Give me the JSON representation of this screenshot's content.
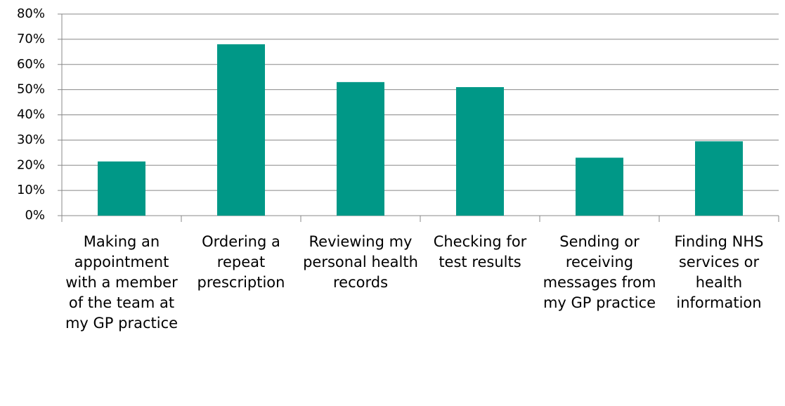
{
  "chart_data": {
    "type": "bar",
    "categories": [
      "Making an appointment with a member of the team at my GP practice",
      "Ordering a repeat prescription",
      "Reviewing my personal health records",
      "Checking for test results",
      "Sending or receiving messages from my GP practice",
      "Finding NHS services or health information"
    ],
    "values": [
      21.5,
      68,
      53,
      51,
      23,
      29.5
    ],
    "color": "#009887",
    "ylim": [
      0,
      80
    ],
    "yticks": [
      {
        "value": 0,
        "label": "0%"
      },
      {
        "value": 10,
        "label": "10%"
      },
      {
        "value": 20,
        "label": "20%"
      },
      {
        "value": 30,
        "label": "30%"
      },
      {
        "value": 40,
        "label": "40%"
      },
      {
        "value": 50,
        "label": "50%"
      },
      {
        "value": 60,
        "label": "60%"
      },
      {
        "value": 70,
        "label": "70%"
      },
      {
        "value": 80,
        "label": "80%"
      }
    ],
    "grid": true
  }
}
